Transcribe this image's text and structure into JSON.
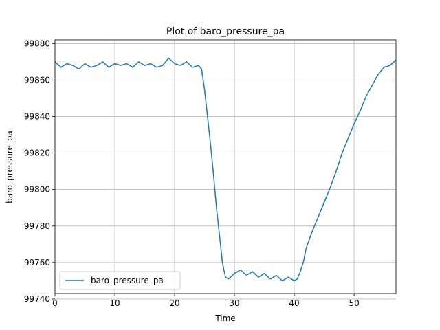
{
  "chart_data": {
    "type": "line",
    "title": "Plot of baro_pressure_pa",
    "xlabel": "Time",
    "ylabel": "baro_pressure_pa",
    "xlim": [
      0,
      57
    ],
    "ylim": [
      99743,
      99882
    ],
    "xticks": [
      0,
      10,
      20,
      30,
      40,
      50
    ],
    "xtick_labels": [
      "0",
      "10",
      "20",
      "30",
      "40",
      "50"
    ],
    "yticks": [
      99740,
      99760,
      99780,
      99800,
      99820,
      99840,
      99860,
      99880
    ],
    "ytick_labels": [
      "99740",
      "99760",
      "99780",
      "99800",
      "99820",
      "99840",
      "99860",
      "99880"
    ],
    "grid": true,
    "legend_position": "lower-left",
    "series": [
      {
        "name": "baro_pressure_pa",
        "color": "#1f77b4",
        "x": [
          0,
          1,
          2,
          3,
          4,
          5,
          6,
          7,
          8,
          9,
          10,
          11,
          12,
          13,
          14,
          15,
          16,
          17,
          18,
          19,
          20,
          21,
          22,
          23,
          24,
          24.5,
          25,
          25.5,
          26,
          26.5,
          27,
          27.5,
          28,
          28.5,
          29,
          30,
          31,
          32,
          33,
          34,
          35,
          36,
          37,
          38,
          39,
          40,
          40.5,
          41,
          41.5,
          42,
          43,
          44,
          45,
          46,
          47,
          48,
          49,
          50,
          51,
          52,
          53,
          54,
          55,
          56,
          57
        ],
        "y": [
          99870,
          99867,
          99869,
          99868,
          99866,
          99869,
          99867,
          99868,
          99870,
          99867,
          99869,
          99868,
          99869,
          99867,
          99870,
          99868,
          99869,
          99867,
          99868,
          99872,
          99869,
          99868,
          99870,
          99867,
          99868,
          99866,
          99855,
          99840,
          99825,
          99808,
          99790,
          99775,
          99760,
          99752,
          99751,
          99754,
          99756,
          99753,
          99755,
          99752,
          99754,
          99751,
          99753,
          99750,
          99752,
          99750,
          99751,
          99755,
          99760,
          99768,
          99777,
          99785,
          99793,
          99801,
          99810,
          99820,
          99828,
          99836,
          99843,
          99851,
          99857,
          99863,
          99867,
          99868,
          99871
        ]
      }
    ]
  }
}
